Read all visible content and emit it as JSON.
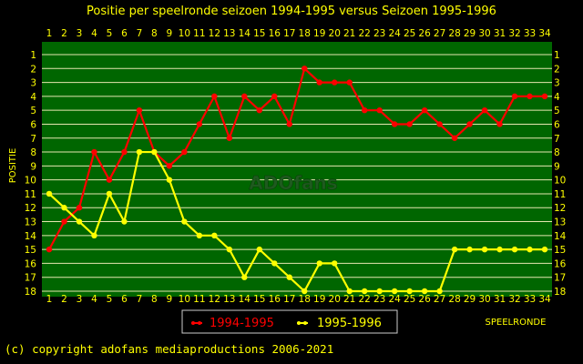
{
  "chart_data": {
    "type": "line",
    "title": "Positie per speelronde seizoen 1994-1995 versus Seizoen 1995-1996",
    "xlabel": "SPEELRONDE",
    "ylabel": "POSITIE",
    "x": [
      1,
      2,
      3,
      4,
      5,
      6,
      7,
      8,
      9,
      10,
      11,
      12,
      13,
      14,
      15,
      16,
      17,
      18,
      19,
      20,
      21,
      22,
      23,
      24,
      25,
      26,
      27,
      28,
      29,
      30,
      31,
      32,
      33,
      34
    ],
    "xlim": [
      1,
      34
    ],
    "ylim": [
      1,
      18
    ],
    "y_inverted": true,
    "yticks": [
      1,
      2,
      3,
      4,
      5,
      6,
      7,
      8,
      9,
      10,
      11,
      12,
      13,
      14,
      15,
      16,
      17,
      18
    ],
    "grid": true,
    "legend_position": "bottom-left",
    "watermark": "ADOfans",
    "series": [
      {
        "name": "1994-1995",
        "color": "#ff0000",
        "values": [
          15,
          13,
          12,
          8,
          10,
          8,
          5,
          8,
          9,
          8,
          6,
          4,
          7,
          4,
          5,
          4,
          6,
          2,
          3,
          3,
          3,
          5,
          5,
          6,
          6,
          5,
          6,
          7,
          6,
          5,
          6,
          4,
          4,
          4
        ]
      },
      {
        "name": "1995-1996",
        "color": "#ffff00",
        "values": [
          11,
          12,
          13,
          14,
          11,
          13,
          8,
          8,
          10,
          13,
          14,
          14,
          15,
          17,
          15,
          16,
          17,
          18,
          16,
          16,
          18,
          18,
          18,
          18,
          18,
          18,
          18,
          15,
          15,
          15,
          15,
          15,
          15,
          15
        ]
      }
    ]
  },
  "colors": {
    "background": "#000000",
    "plot_background": "#006600",
    "text": "#ffff00",
    "grid": "#e6e6b0"
  },
  "footer": {
    "copyright": "(c) copyright adofans mediaproductions 2006-2021"
  }
}
